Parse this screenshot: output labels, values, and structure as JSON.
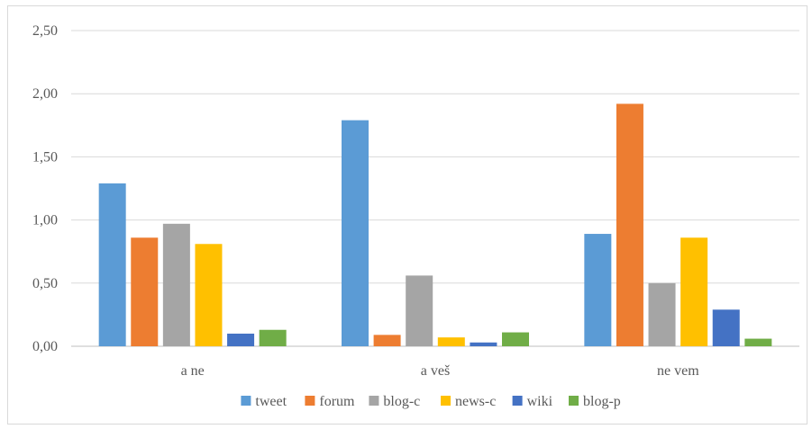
{
  "chart_data": {
    "type": "bar",
    "title": "",
    "xlabel": "",
    "ylabel": "",
    "categories": [
      "a ne",
      "a veš",
      "ne vem"
    ],
    "ylim": [
      0,
      2.5
    ],
    "yticks": [
      "0,00",
      "0,50",
      "1,00",
      "1,50",
      "2,00",
      "2,50"
    ],
    "ytick_values": [
      0,
      0.5,
      1.0,
      1.5,
      2.0,
      2.5
    ],
    "grid": true,
    "legend_position": "bottom",
    "series": [
      {
        "name": "tweet",
        "color": "#5b9bd5",
        "values": [
          1.29,
          1.79,
          0.89
        ]
      },
      {
        "name": "forum",
        "color": "#ed7d31",
        "values": [
          0.86,
          0.09,
          1.92
        ]
      },
      {
        "name": "blog-c",
        "color": "#a5a5a5",
        "values": [
          0.97,
          0.56,
          0.5
        ]
      },
      {
        "name": "news-c",
        "color": "#ffc000",
        "values": [
          0.81,
          0.07,
          0.86
        ]
      },
      {
        "name": "wiki",
        "color": "#4472c4",
        "values": [
          0.1,
          0.03,
          0.29
        ]
      },
      {
        "name": "blog-p",
        "color": "#70ad47",
        "values": [
          0.13,
          0.11,
          0.06
        ]
      }
    ]
  }
}
